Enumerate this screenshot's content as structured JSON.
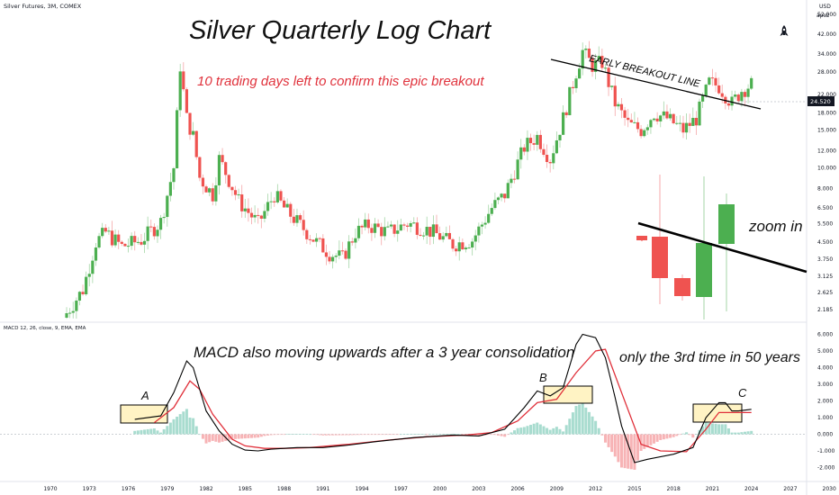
{
  "header": {
    "symbol": "Silver Futures, 3M, COMEX",
    "currency": "USD",
    "scale_mode": "apoz",
    "price_tag": "24.520"
  },
  "annotations": {
    "title": "Silver Quarterly Log Chart",
    "subtitle": "10 trading days left to confirm this epic breakout",
    "trendline_label": "EARLY BREAKOUT LINE",
    "zoom_label": "zoom in",
    "macd_note": "MACD also moving upwards after a 3 year consolidation",
    "macd_note2": "only the 3rd time in 50 years",
    "box_a": "A",
    "box_b": "B",
    "box_c": "C"
  },
  "colors": {
    "up": "#4caf50",
    "down": "#ef5350",
    "macd_line": "#000000",
    "signal_line": "#e0303a",
    "hist_up": "#a8dccf",
    "hist_down": "#f7b3b5",
    "highlight_box": "#fff3c4",
    "red_text": "#e0323c"
  },
  "chart_data": [
    {
      "type": "candlestick",
      "title": "Silver Quarterly Log Chart",
      "scale": "log",
      "y_ticks": [
        "52.000",
        "42.000",
        "34.000",
        "28.000",
        "22.000",
        "18.000",
        "15.000",
        "12.000",
        "10.000",
        "8.000",
        "6.500",
        "5.500",
        "4.500",
        "3.750",
        "3.125",
        "2.625",
        "2.185"
      ],
      "x_ticks": [
        "1970",
        "1973",
        "1976",
        "1979",
        "1982",
        "1985",
        "1988",
        "1991",
        "1994",
        "1997",
        "2000",
        "2003",
        "2006",
        "2009",
        "2012",
        "2015",
        "2018",
        "2021",
        "2024",
        "2027",
        "2030"
      ],
      "last_price": 24.52,
      "anchors": [
        [
          1971.0,
          2.0
        ],
        [
          1972.5,
          2.7
        ],
        [
          1973.5,
          4.5
        ],
        [
          1974.25,
          5.0
        ],
        [
          1975.5,
          4.3
        ],
        [
          1977.0,
          4.6
        ],
        [
          1978.5,
          5.6
        ],
        [
          1979.5,
          10.0
        ],
        [
          1980.0,
          30.0
        ],
        [
          1980.5,
          17.0
        ],
        [
          1981.0,
          14.0
        ],
        [
          1981.5,
          9.0
        ],
        [
          1982.5,
          7.5
        ],
        [
          1983.0,
          11.0
        ],
        [
          1983.5,
          9.5
        ],
        [
          1984.5,
          7.0
        ],
        [
          1986.0,
          5.5
        ],
        [
          1987.25,
          7.5
        ],
        [
          1988.0,
          6.5
        ],
        [
          1989.5,
          5.2
        ],
        [
          1990.5,
          4.5
        ],
        [
          1991.5,
          4.0
        ],
        [
          1992.5,
          3.8
        ],
        [
          1993.5,
          5.0
        ],
        [
          1994.5,
          5.4
        ],
        [
          1996.0,
          5.0
        ],
        [
          1997.5,
          5.5
        ],
        [
          1998.5,
          5.3
        ],
        [
          1999.5,
          5.0
        ],
        [
          2001.0,
          4.4
        ],
        [
          2002.5,
          4.6
        ],
        [
          2004.0,
          6.5
        ],
        [
          2005.0,
          7.5
        ],
        [
          2006.5,
          12.5
        ],
        [
          2007.5,
          14.0
        ],
        [
          2008.5,
          11.0
        ],
        [
          2009.5,
          17.0
        ],
        [
          2010.5,
          28.0
        ],
        [
          2011.0,
          35.0
        ],
        [
          2011.75,
          30.0
        ],
        [
          2012.5,
          31.0
        ],
        [
          2013.5,
          20.0
        ],
        [
          2014.5,
          16.0
        ],
        [
          2015.5,
          15.0
        ],
        [
          2016.5,
          18.0
        ],
        [
          2017.5,
          17.0
        ],
        [
          2018.75,
          15.0
        ],
        [
          2019.75,
          17.0
        ],
        [
          2020.75,
          25.0
        ],
        [
          2021.5,
          24.0
        ],
        [
          2022.5,
          20.0
        ],
        [
          2023.25,
          23.0
        ],
        [
          2024.0,
          24.52
        ]
      ]
    },
    {
      "type": "line",
      "title": "MACD 12, 26, close, 9, EMA, EMA",
      "series": [
        {
          "name": "MACD",
          "points": [
            [
              1976.5,
              0.9
            ],
            [
              1978.5,
              1.1
            ],
            [
              1979.5,
              2.5
            ],
            [
              1980.5,
              4.4
            ],
            [
              1981.0,
              4.0
            ],
            [
              1982.0,
              1.4
            ],
            [
              1983.0,
              0.2
            ],
            [
              1984.0,
              -0.6
            ],
            [
              1985.0,
              -0.95
            ],
            [
              1986.0,
              -1.0
            ],
            [
              1987.0,
              -0.9
            ],
            [
              1989.0,
              -0.8
            ],
            [
              1991.0,
              -0.8
            ],
            [
              1993.0,
              -0.65
            ],
            [
              1995.0,
              -0.45
            ],
            [
              1998.0,
              -0.2
            ],
            [
              2001.0,
              -0.05
            ],
            [
              2003.0,
              -0.1
            ],
            [
              2005.0,
              0.3
            ],
            [
              2006.5,
              1.6
            ],
            [
              2007.5,
              2.6
            ],
            [
              2008.5,
              2.3
            ],
            [
              2009.5,
              2.8
            ],
            [
              2010.5,
              5.4
            ],
            [
              2011.0,
              6.0
            ],
            [
              2012.0,
              5.8
            ],
            [
              2012.75,
              4.6
            ],
            [
              2013.5,
              2.2
            ],
            [
              2014.0,
              0.5
            ],
            [
              2015.0,
              -1.7
            ],
            [
              2016.0,
              -1.5
            ],
            [
              2018.0,
              -1.2
            ],
            [
              2019.5,
              -0.8
            ],
            [
              2020.5,
              1.0
            ],
            [
              2021.5,
              1.9
            ],
            [
              2022.0,
              1.9
            ],
            [
              2022.5,
              1.4
            ],
            [
              2023.0,
              1.4
            ],
            [
              2024.0,
              1.5
            ]
          ]
        },
        {
          "name": "Signal",
          "points": [
            [
              1978.0,
              0.7
            ],
            [
              1979.5,
              1.6
            ],
            [
              1980.75,
              3.2
            ],
            [
              1981.5,
              2.7
            ],
            [
              1982.5,
              1.2
            ],
            [
              1984.0,
              -0.3
            ],
            [
              1985.0,
              -0.7
            ],
            [
              1986.5,
              -0.85
            ],
            [
              1988.0,
              -0.85
            ],
            [
              1990.0,
              -0.8
            ],
            [
              1993.0,
              -0.6
            ],
            [
              1996.0,
              -0.35
            ],
            [
              1999.0,
              -0.15
            ],
            [
              2002.0,
              -0.05
            ],
            [
              2004.0,
              0.1
            ],
            [
              2006.0,
              0.8
            ],
            [
              2007.5,
              1.9
            ],
            [
              2009.0,
              2.1
            ],
            [
              2010.5,
              3.7
            ],
            [
              2012.0,
              5.0
            ],
            [
              2012.75,
              5.1
            ],
            [
              2014.0,
              2.5
            ],
            [
              2015.5,
              -0.6
            ],
            [
              2017.0,
              -1.0
            ],
            [
              2019.0,
              -1.05
            ],
            [
              2020.5,
              0.3
            ],
            [
              2021.5,
              1.3
            ],
            [
              2023.0,
              1.3
            ],
            [
              2024.0,
              1.3
            ]
          ]
        }
      ],
      "y_ticks": [
        "6.000",
        "5.000",
        "4.000",
        "3.000",
        "2.000",
        "1.000",
        "0.000",
        "-1.000",
        "-2.000"
      ]
    }
  ]
}
